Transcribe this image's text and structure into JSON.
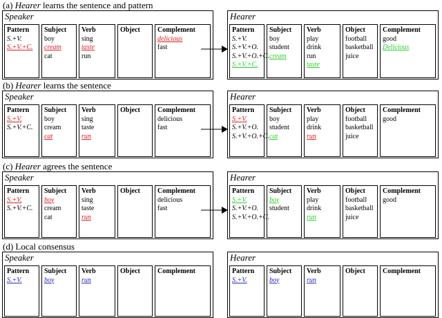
{
  "sections": [
    {
      "title_prefix": "(a) ",
      "title_em": "Hearer",
      "title_suffix": " learns the sentence and pattern",
      "speaker": {
        "label": "Speaker",
        "columns": [
          {
            "header": "Pattern",
            "items": [
              {
                "text": "S.+V.",
                "style": "it"
              },
              {
                "text": "S.+V.+C.",
                "style": "red"
              }
            ]
          },
          {
            "header": "Subject",
            "items": [
              {
                "text": "boy"
              },
              {
                "text": "cream",
                "style": "red"
              },
              {
                "text": "cat"
              }
            ]
          },
          {
            "header": "Verb",
            "items": [
              {
                "text": "sing"
              },
              {
                "text": "taste",
                "style": "red"
              },
              {
                "text": "run"
              }
            ]
          },
          {
            "header": "Object",
            "items": []
          },
          {
            "header": "Complement",
            "items": [
              {
                "text": "delicious",
                "style": "red"
              },
              {
                "text": "fast"
              }
            ]
          }
        ]
      },
      "hearer": {
        "label": "Hearer",
        "columns": [
          {
            "header": "Pattern",
            "items": [
              {
                "text": "S.+V.",
                "style": "it"
              },
              {
                "text": "S.+V.+O.",
                "style": "it"
              },
              {
                "text": "S.+V.+O.+C.",
                "style": "it"
              },
              {
                "text": "S.+V.+C.",
                "style": "green"
              }
            ]
          },
          {
            "header": "Subject",
            "items": [
              {
                "text": "boy"
              },
              {
                "text": "student"
              },
              {
                "text": "cream",
                "style": "green"
              }
            ]
          },
          {
            "header": "Verb",
            "items": [
              {
                "text": "play"
              },
              {
                "text": "drink"
              },
              {
                "text": "run"
              },
              {
                "text": "taste",
                "style": "green"
              }
            ]
          },
          {
            "header": "Object",
            "items": [
              {
                "text": "football"
              },
              {
                "text": "basketball"
              },
              {
                "text": "juice"
              }
            ]
          },
          {
            "header": "Complement",
            "items": [
              {
                "text": "good"
              },
              {
                "text": "Delicious",
                "style": "green"
              }
            ]
          }
        ]
      }
    },
    {
      "title_prefix": "(b) ",
      "title_em": "Hearer",
      "title_suffix": " learns the sentence",
      "speaker": {
        "label": "Speaker",
        "columns": [
          {
            "header": "Pattern",
            "items": [
              {
                "text": "S.+V.",
                "style": "red"
              },
              {
                "text": "S.+V.+C.",
                "style": "it"
              }
            ]
          },
          {
            "header": "Subject",
            "items": [
              {
                "text": "boy"
              },
              {
                "text": "cream"
              },
              {
                "text": "cat",
                "style": "red"
              }
            ]
          },
          {
            "header": "Verb",
            "items": [
              {
                "text": "sing"
              },
              {
                "text": "taste"
              },
              {
                "text": "run",
                "style": "red"
              }
            ]
          },
          {
            "header": "Object",
            "items": []
          },
          {
            "header": "Complement",
            "items": [
              {
                "text": "delicious"
              },
              {
                "text": "fast"
              }
            ]
          }
        ]
      },
      "hearer": {
        "label": "Hearer",
        "columns": [
          {
            "header": "Pattern",
            "items": [
              {
                "text": "S.+V.",
                "style": "red"
              },
              {
                "text": "S.+V.+O.",
                "style": "it"
              },
              {
                "text": "S.+V.+O.+C.",
                "style": "it"
              }
            ]
          },
          {
            "header": "Subject",
            "items": [
              {
                "text": "boy"
              },
              {
                "text": "student"
              },
              {
                "text": "cat",
                "style": "green"
              }
            ]
          },
          {
            "header": "Verb",
            "items": [
              {
                "text": "play"
              },
              {
                "text": "drink"
              },
              {
                "text": "run",
                "style": "red"
              }
            ]
          },
          {
            "header": "Object",
            "items": [
              {
                "text": "football"
              },
              {
                "text": "basketball"
              },
              {
                "text": "juice"
              }
            ]
          },
          {
            "header": "Complement",
            "items": [
              {
                "text": "good"
              }
            ]
          }
        ]
      }
    },
    {
      "title_prefix": "(c) ",
      "title_em": "Hearer",
      "title_suffix": " agrees the sentence",
      "speaker": {
        "label": "Speaker",
        "columns": [
          {
            "header": "Pattern",
            "items": [
              {
                "text": "S.+V.",
                "style": "red"
              },
              {
                "text": "S.+V.+C.",
                "style": "it"
              }
            ]
          },
          {
            "header": "Subject",
            "items": [
              {
                "text": "boy",
                "style": "red"
              },
              {
                "text": "cream"
              },
              {
                "text": "cat"
              }
            ]
          },
          {
            "header": "Verb",
            "items": [
              {
                "text": "sing"
              },
              {
                "text": "taste"
              },
              {
                "text": "run",
                "style": "red"
              }
            ]
          },
          {
            "header": "Object",
            "items": []
          },
          {
            "header": "Complement",
            "items": [
              {
                "text": "delicious"
              },
              {
                "text": "fast"
              }
            ]
          }
        ]
      },
      "hearer": {
        "label": "Hearer",
        "columns": [
          {
            "header": "Pattern",
            "items": [
              {
                "text": "S.+V.",
                "style": "green"
              },
              {
                "text": "S.+V.+O.",
                "style": "it"
              },
              {
                "text": "S.+V.+O.+C.",
                "style": "it"
              }
            ]
          },
          {
            "header": "Subject",
            "items": [
              {
                "text": "boy",
                "style": "green"
              },
              {
                "text": "student"
              }
            ]
          },
          {
            "header": "Verb",
            "items": [
              {
                "text": "play"
              },
              {
                "text": "drink"
              },
              {
                "text": "run",
                "style": "green"
              }
            ]
          },
          {
            "header": "Object",
            "items": [
              {
                "text": "football"
              },
              {
                "text": "basketball"
              },
              {
                "text": "juice"
              }
            ]
          },
          {
            "header": "Complement",
            "items": [
              {
                "text": "good"
              }
            ]
          }
        ]
      }
    },
    {
      "title_prefix": "(d) ",
      "title_em": "",
      "title_suffix": "Local consensus",
      "speaker": {
        "label": "Speaker",
        "columns": [
          {
            "header": "Pattern",
            "items": [
              {
                "text": "S.+V.",
                "style": "blue"
              }
            ]
          },
          {
            "header": "Subject",
            "items": [
              {
                "text": "boy",
                "style": "blue"
              }
            ]
          },
          {
            "header": "Verb",
            "items": [
              {
                "text": "run",
                "style": "blue"
              }
            ]
          },
          {
            "header": "Object",
            "items": []
          },
          {
            "header": "Complement",
            "items": []
          }
        ]
      },
      "hearer": {
        "label": "Hearer",
        "columns": [
          {
            "header": "Pattern",
            "items": [
              {
                "text": "S.+V.",
                "style": "blue"
              }
            ]
          },
          {
            "header": "Subject",
            "items": [
              {
                "text": "boy",
                "style": "blue"
              }
            ]
          },
          {
            "header": "Verb",
            "items": [
              {
                "text": "run",
                "style": "blue"
              }
            ]
          },
          {
            "header": "Object",
            "items": []
          },
          {
            "header": "Complement",
            "items": []
          }
        ]
      }
    }
  ]
}
